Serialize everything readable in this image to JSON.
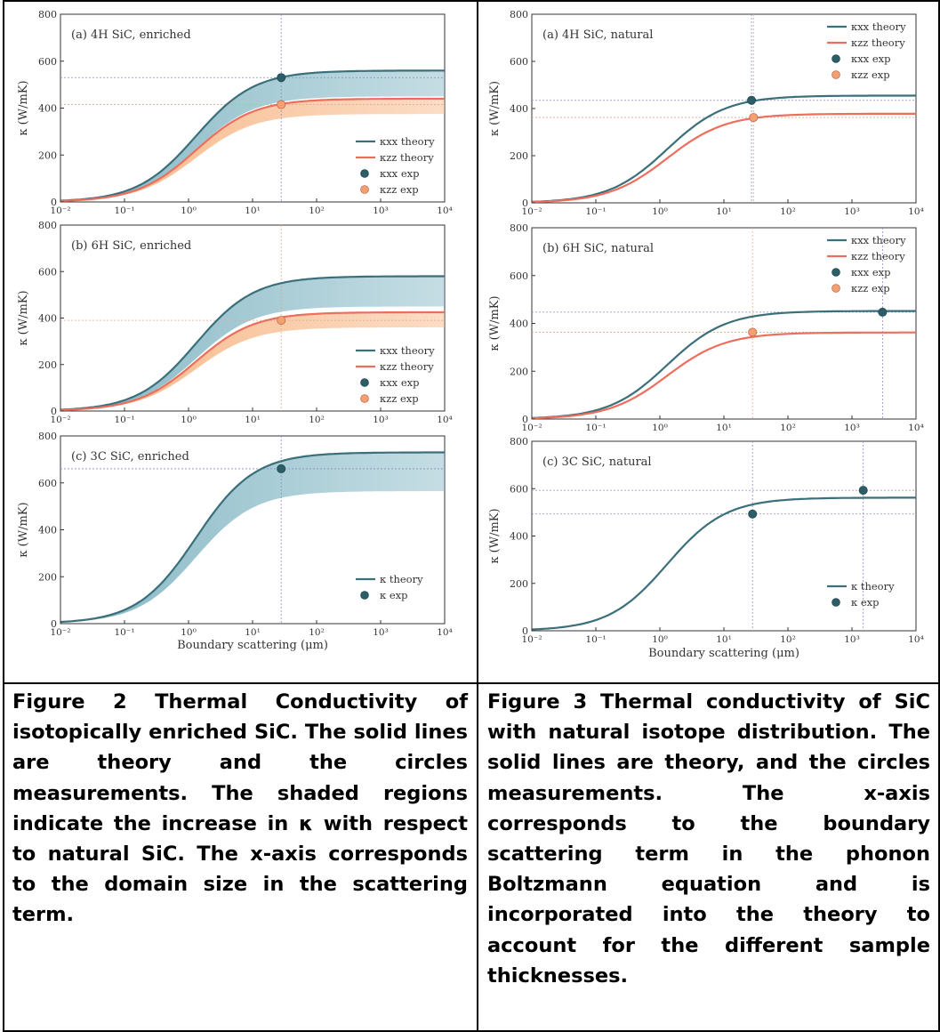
{
  "colors": {
    "xx": "#3b6f7a",
    "zz": "#ec6e5d",
    "xx_fill": "#7fb4c2",
    "zz_fill": "#f6b27e",
    "xx_point": "#2d5d66",
    "zz_point": "#f3a073",
    "guide_xx": "#8a8ac8",
    "guide_zz": "#e3a88e"
  },
  "captions": {
    "left": "Figure 2 Thermal Conductivity of isotopically enriched SiC. The solid lines are theory and the circles measurements. The shaded regions indicate the increase in κ with respect to natural SiC. The x-axis corresponds to the domain size in the scattering term.",
    "right": "Figure 3 Thermal conductivity of SiC with natural isotope distribution. The solid lines are theory, and the circles measurements. The x-axis corresponds to the boundary scattering term in the phonon Boltzmann equation and is incorporated into the theory to account for the different sample thicknesses."
  },
  "chart_data": [
    {
      "type": "line",
      "panel": "(a) 4H SiC, enriched",
      "xscale": "log",
      "xlim": [
        0.01,
        10000
      ],
      "ylim": [
        0,
        800
      ],
      "xticks": [
        "10⁻²",
        "10⁻¹",
        "10⁰",
        "10¹",
        "10²",
        "10³",
        "10⁴"
      ],
      "yticks": [
        "0",
        "200",
        "400",
        "600",
        "800"
      ],
      "ylabel": "κ (W/mK)",
      "xlabel": "",
      "legend": [
        "κxx theory",
        "κzz theory",
        "κxx exp",
        "κzz exp"
      ],
      "series": [
        {
          "name": "κxx theory",
          "role": "xx",
          "kmax": 560,
          "natural_kmax": 450
        },
        {
          "name": "κzz theory",
          "role": "zz",
          "kmax": 440,
          "natural_kmax": 375
        }
      ],
      "points": [
        {
          "name": "κxx exp",
          "role": "xx",
          "x": 28,
          "y": 530
        },
        {
          "name": "κzz exp",
          "role": "zz",
          "x": 28,
          "y": 415
        }
      ],
      "guides": {
        "vx": [
          28
        ],
        "hy": [
          530,
          415
        ]
      }
    },
    {
      "type": "line",
      "panel": "(b) 6H SiC, enriched",
      "xscale": "log",
      "xlim": [
        0.01,
        10000
      ],
      "ylim": [
        0,
        800
      ],
      "xticks": [
        "10⁻²",
        "10⁻¹",
        "10⁰",
        "10¹",
        "10²",
        "10³",
        "10⁴"
      ],
      "yticks": [
        "0",
        "200",
        "400",
        "600",
        "800"
      ],
      "ylabel": "κ (W/mK)",
      "xlabel": "",
      "legend": [
        "κxx theory",
        "κzz theory",
        "κxx exp",
        "κzz exp"
      ],
      "series": [
        {
          "name": "κxx theory",
          "role": "xx",
          "kmax": 580,
          "natural_kmax": 450
        },
        {
          "name": "κzz theory",
          "role": "zz",
          "kmax": 425,
          "natural_kmax": 360
        }
      ],
      "points": [
        {
          "name": "κzz exp",
          "role": "zz",
          "x": 28,
          "y": 390
        }
      ],
      "guides": {
        "vx": [
          28
        ],
        "hy": [
          390
        ]
      }
    },
    {
      "type": "line",
      "panel": "(c) 3C SiC, enriched",
      "xscale": "log",
      "xlim": [
        0.01,
        10000
      ],
      "ylim": [
        0,
        800
      ],
      "xticks": [
        "10⁻²",
        "10⁻¹",
        "10⁰",
        "10¹",
        "10²",
        "10³",
        "10⁴"
      ],
      "yticks": [
        "0",
        "200",
        "400",
        "600",
        "800"
      ],
      "ylabel": "κ (W/mK)",
      "xlabel": "Boundary scattering (μm)",
      "legend": [
        "κ theory",
        "κ exp"
      ],
      "series": [
        {
          "name": "κ theory",
          "role": "xx",
          "kmax": 730,
          "natural_kmax": 565
        }
      ],
      "points": [
        {
          "name": "κ exp",
          "role": "xx",
          "x": 28,
          "y": 660
        }
      ],
      "guides": {
        "vx": [
          28
        ],
        "hy": [
          660
        ]
      }
    },
    {
      "type": "line",
      "panel": "(a) 4H SiC, natural",
      "xscale": "log",
      "xlim": [
        0.01,
        10000
      ],
      "ylim": [
        0,
        800
      ],
      "xticks": [
        "10⁻²",
        "10⁻¹",
        "10⁰",
        "10¹",
        "10²",
        "10³",
        "10⁴"
      ],
      "yticks": [
        "0",
        "200",
        "400",
        "600",
        "800"
      ],
      "ylabel": "κ (W/mK)",
      "xlabel": "",
      "legend": [
        "κxx theory",
        "κzz theory",
        "κxx exp",
        "κzz exp"
      ],
      "series": [
        {
          "name": "κxx theory",
          "role": "xx",
          "kmax": 455
        },
        {
          "name": "κzz theory",
          "role": "zz",
          "kmax": 378
        }
      ],
      "points": [
        {
          "name": "κxx exp",
          "role": "xx",
          "x": 27,
          "y": 435
        },
        {
          "name": "κzz exp",
          "role": "zz",
          "x": 29,
          "y": 362
        }
      ],
      "guides": {
        "vx": [
          27,
          29
        ],
        "hy": [
          435,
          362
        ]
      }
    },
    {
      "type": "line",
      "panel": "(b) 6H SiC, natural",
      "xscale": "log",
      "xlim": [
        0.01,
        10000
      ],
      "ylim": [
        0,
        800
      ],
      "xticks": [
        "10⁻²",
        "10⁻¹",
        "10⁰",
        "10¹",
        "10²",
        "10³",
        "10⁴"
      ],
      "yticks": [
        "0",
        "200",
        "400",
        "600",
        "800"
      ],
      "ylabel": "κ (W/mK)",
      "xlabel": "",
      "legend": [
        "κxx theory",
        "κzz theory",
        "κxx exp",
        "κzz exp"
      ],
      "series": [
        {
          "name": "κxx theory",
          "role": "xx",
          "kmax": 452
        },
        {
          "name": "κzz theory",
          "role": "zz",
          "kmax": 362
        }
      ],
      "points": [
        {
          "name": "κxx exp",
          "role": "xx",
          "x": 3000,
          "y": 447
        },
        {
          "name": "κzz exp",
          "role": "zz",
          "x": 28,
          "y": 363
        }
      ],
      "guides": {
        "vx": [
          3000,
          28
        ],
        "hy": [
          447,
          363
        ]
      }
    },
    {
      "type": "line",
      "panel": "(c) 3C SiC, natural",
      "xscale": "log",
      "xlim": [
        0.01,
        10000
      ],
      "ylim": [
        0,
        800
      ],
      "xticks": [
        "10⁻²",
        "10⁻¹",
        "10⁰",
        "10¹",
        "10²",
        "10³",
        "10⁴"
      ],
      "yticks": [
        "0",
        "200",
        "400",
        "600",
        "800"
      ],
      "ylabel": "κ (W/mK)",
      "xlabel": "Boundary scattering (μm)",
      "legend": [
        "κ theory",
        "κ exp"
      ],
      "series": [
        {
          "name": "κ theory",
          "role": "xx",
          "kmax": 562
        }
      ],
      "points": [
        {
          "name": "κ exp",
          "role": "xx",
          "x": 28,
          "y": 493
        },
        {
          "name": "κ exp",
          "role": "xx",
          "x": 1500,
          "y": 593
        }
      ],
      "guides": {
        "vx": [
          28,
          1500
        ],
        "hy": [
          493,
          593
        ]
      }
    }
  ]
}
